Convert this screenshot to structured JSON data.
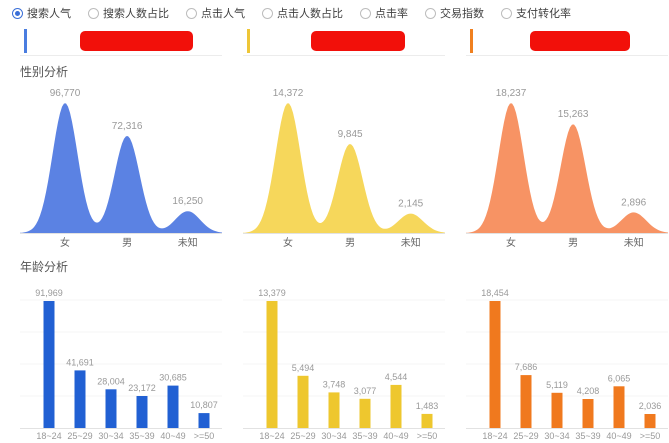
{
  "metrics": {
    "options": [
      {
        "label": "搜索人气",
        "selected": true
      },
      {
        "label": "搜索人数占比",
        "selected": false
      },
      {
        "label": "点击人气",
        "selected": false
      },
      {
        "label": "点击人数占比",
        "selected": false
      },
      {
        "label": "点击率",
        "selected": false
      },
      {
        "label": "交易指数",
        "selected": false
      },
      {
        "label": "支付转化率",
        "selected": false
      }
    ]
  },
  "legend": {
    "items": [
      {
        "name": "",
        "redacted": true,
        "color": "#4a7de0"
      },
      {
        "name": "",
        "redacted": true,
        "color": "#eec637"
      },
      {
        "name": "",
        "redacted": true,
        "color": "#f0801f"
      }
    ],
    "redaction_color": "#f2100a"
  },
  "sections": {
    "gender": {
      "title": "性别分析"
    },
    "age": {
      "title": "年龄分析"
    }
  },
  "chart_data": [
    {
      "type": "area",
      "group": "性别分析",
      "categories": [
        "女",
        "男",
        "未知"
      ],
      "values": [
        96770,
        72316,
        16250
      ],
      "labels": [
        "96,770",
        "72,316",
        "16,250"
      ],
      "color": "#5b82e3",
      "ylim": [
        0,
        96770
      ],
      "grid": false
    },
    {
      "type": "area",
      "group": "性别分析",
      "categories": [
        "女",
        "男",
        "未知"
      ],
      "values": [
        14372,
        9845,
        2145
      ],
      "labels": [
        "14,372",
        "9,845",
        "2,145"
      ],
      "color": "#f6d75b",
      "ylim": [
        0,
        14372
      ],
      "grid": false
    },
    {
      "type": "area",
      "group": "性别分析",
      "categories": [
        "女",
        "男",
        "未知"
      ],
      "values": [
        18237,
        15263,
        2896
      ],
      "labels": [
        "18,237",
        "15,263",
        "2,896"
      ],
      "color": "#f79364",
      "ylim": [
        0,
        18237
      ],
      "grid": false
    },
    {
      "type": "bar",
      "group": "年龄分析",
      "categories": [
        "18~24",
        "25~29",
        "30~34",
        "35~39",
        "40~49",
        ">=50"
      ],
      "values": [
        91969,
        41691,
        28004,
        23172,
        30685,
        10807
      ],
      "labels": [
        "91,969",
        "41,691",
        "28,004",
        "23,172",
        "30,685",
        "10,807"
      ],
      "color": "#2160d3",
      "ylim": [
        0,
        91969
      ],
      "grid": true
    },
    {
      "type": "bar",
      "group": "年龄分析",
      "categories": [
        "18~24",
        "25~29",
        "30~34",
        "35~39",
        "40~49",
        ">=50"
      ],
      "values": [
        13379,
        5494,
        3748,
        3077,
        4544,
        1483
      ],
      "labels": [
        "13,379",
        "5,494",
        "3,748",
        "3,077",
        "4,544",
        "1,483"
      ],
      "color": "#eec72e",
      "ylim": [
        0,
        13379
      ],
      "grid": true
    },
    {
      "type": "bar",
      "group": "年龄分析",
      "categories": [
        "18~24",
        "25~29",
        "30~34",
        "35~39",
        "40~49",
        ">=50"
      ],
      "values": [
        18454,
        7686,
        5119,
        4208,
        6065,
        2036
      ],
      "labels": [
        "18,454",
        "7,686",
        "5,119",
        "4,208",
        "6,065",
        "2,036"
      ],
      "color": "#f0791e",
      "ylim": [
        0,
        18454
      ],
      "grid": true
    }
  ]
}
